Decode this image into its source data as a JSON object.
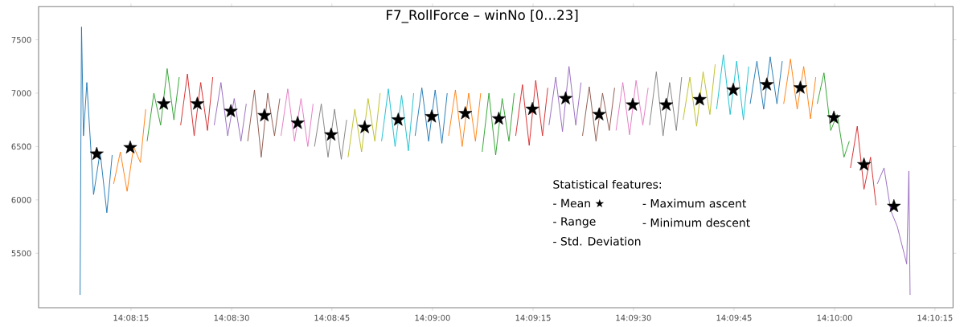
{
  "chart_data": {
    "type": "line",
    "title": "F7_RollForce – winNo [0...23]",
    "annotations": [
      "Statistical features:",
      "- Mean ★",
      "- Maximum ascent",
      "- Range",
      "- Minimum descent",
      "- Std. Deviation"
    ],
    "xlim": [
      14.13367,
      14.17158
    ],
    "ylim": [
      4990,
      7810
    ],
    "xticks": [
      {
        "value": 14.1375,
        "label": "14:08:15"
      },
      {
        "value": 14.14167,
        "label": "14:08:30"
      },
      {
        "value": 14.14583,
        "label": "14:08:45"
      },
      {
        "value": 14.15,
        "label": "14:09:00"
      },
      {
        "value": 14.15417,
        "label": "14:09:15"
      },
      {
        "value": 14.15833,
        "label": "14:09:30"
      },
      {
        "value": 14.1625,
        "label": "14:09:45"
      },
      {
        "value": 14.16667,
        "label": "14:10:00"
      },
      {
        "value": 14.17083,
        "label": "14:10:15"
      }
    ],
    "yticks": [
      5500,
      6000,
      6500,
      7000,
      7500
    ],
    "series": [
      {
        "color": "#1f77b4",
        "x": [
          14.13539,
          14.13545,
          14.13553,
          14.13567,
          14.13595,
          14.13622,
          14.1365,
          14.13672
        ],
        "values": [
          5110,
          7620,
          6600,
          7100,
          6050,
          6450,
          5880,
          6420
        ]
      },
      {
        "color": "#ff7f0e",
        "x": [
          14.13678,
          14.13706,
          14.13734,
          14.13761,
          14.13789,
          14.13811
        ],
        "values": [
          6150,
          6450,
          6080,
          6500,
          6350,
          6850
        ]
      },
      {
        "color": "#2ca02c",
        "x": [
          14.13817,
          14.13845,
          14.13873,
          14.139,
          14.13928,
          14.1395
        ],
        "values": [
          6550,
          7000,
          6700,
          7230,
          6750,
          7150
        ]
      },
      {
        "color": "#d62728",
        "x": [
          14.13956,
          14.13984,
          14.14012,
          14.14039,
          14.14067,
          14.14089
        ],
        "values": [
          6700,
          7180,
          6600,
          7100,
          6650,
          7150
        ]
      },
      {
        "color": "#9467bd",
        "x": [
          14.14095,
          14.14123,
          14.14151,
          14.14178,
          14.14206,
          14.14228
        ],
        "values": [
          6700,
          7100,
          6600,
          6950,
          6550,
          6900
        ]
      },
      {
        "color": "#8c564b",
        "x": [
          14.14234,
          14.14262,
          14.1429,
          14.14317,
          14.14345,
          14.14367
        ],
        "values": [
          6550,
          7030,
          6400,
          7000,
          6600,
          6950
        ]
      },
      {
        "color": "#e377c2",
        "x": [
          14.14372,
          14.144,
          14.14428,
          14.14455,
          14.14483,
          14.14505
        ],
        "values": [
          6600,
          7040,
          6550,
          6950,
          6500,
          6900
        ]
      },
      {
        "color": "#7f7f7f",
        "x": [
          14.14511,
          14.14539,
          14.14567,
          14.14594,
          14.14622,
          14.14644
        ],
        "values": [
          6500,
          6900,
          6400,
          6850,
          6380,
          6750
        ]
      },
      {
        "color": "#bcbd22",
        "x": [
          14.1465,
          14.14678,
          14.14706,
          14.14733,
          14.14761,
          14.14783
        ],
        "values": [
          6400,
          6850,
          6450,
          6950,
          6550,
          7000
        ]
      },
      {
        "color": "#17becf",
        "x": [
          14.14789,
          14.14817,
          14.14845,
          14.14872,
          14.149,
          14.14922
        ],
        "values": [
          6550,
          7040,
          6500,
          6980,
          6460,
          7000
        ]
      },
      {
        "color": "#1f77b4",
        "x": [
          14.14928,
          14.14956,
          14.14984,
          14.15011,
          14.15039,
          14.15061
        ],
        "values": [
          6600,
          7050,
          6550,
          7030,
          6530,
          7000
        ]
      },
      {
        "color": "#ff7f0e",
        "x": [
          14.15067,
          14.15095,
          14.15123,
          14.1515,
          14.15178,
          14.152
        ],
        "values": [
          6600,
          7030,
          6500,
          7000,
          6550,
          7000
        ]
      },
      {
        "color": "#2ca02c",
        "x": [
          14.15206,
          14.15234,
          14.15262,
          14.15289,
          14.15317,
          14.15339
        ],
        "values": [
          6450,
          7000,
          6420,
          6950,
          6550,
          7000
        ]
      },
      {
        "color": "#d62728",
        "x": [
          14.15345,
          14.15373,
          14.15401,
          14.15428,
          14.15456,
          14.15478
        ],
        "values": [
          6600,
          7080,
          6510,
          7120,
          6600,
          7050
        ]
      },
      {
        "color": "#9467bd",
        "x": [
          14.15483,
          14.15511,
          14.15539,
          14.15566,
          14.15594,
          14.15616
        ],
        "values": [
          6700,
          7150,
          6640,
          7250,
          6700,
          7100
        ]
      },
      {
        "color": "#8c564b",
        "x": [
          14.15622,
          14.1565,
          14.15678,
          14.15705,
          14.15733,
          14.15755
        ],
        "values": [
          6600,
          7060,
          6550,
          7000,
          6650,
          7050
        ]
      },
      {
        "color": "#e377c2",
        "x": [
          14.15761,
          14.15789,
          14.15817,
          14.15844,
          14.15872,
          14.15894
        ],
        "values": [
          6650,
          7100,
          6610,
          7120,
          6700,
          7050
        ]
      },
      {
        "color": "#7f7f7f",
        "x": [
          14.159,
          14.15928,
          14.15956,
          14.15983,
          14.16011,
          14.16033
        ],
        "values": [
          6700,
          7200,
          6600,
          7100,
          6650,
          7150
        ]
      },
      {
        "color": "#bcbd22",
        "x": [
          14.16039,
          14.16067,
          14.16095,
          14.16122,
          14.1615,
          14.16172
        ],
        "values": [
          6750,
          7150,
          6690,
          7200,
          6800,
          7270
        ]
      },
      {
        "color": "#17becf",
        "x": [
          14.16178,
          14.16206,
          14.16234,
          14.16261,
          14.16289,
          14.16311
        ],
        "values": [
          6850,
          7360,
          6800,
          7300,
          6750,
          7250
        ]
      },
      {
        "color": "#1f77b4",
        "x": [
          14.16317,
          14.16345,
          14.16373,
          14.164,
          14.16428,
          14.1645
        ],
        "values": [
          6900,
          7300,
          6850,
          7340,
          6900,
          7300
        ]
      },
      {
        "color": "#ff7f0e",
        "x": [
          14.16456,
          14.16484,
          14.16512,
          14.16539,
          14.16567,
          14.16589
        ],
        "values": [
          6900,
          7320,
          6850,
          7250,
          6760,
          7150
        ]
      },
      {
        "color": "#2ca02c",
        "x": [
          14.16595,
          14.16623,
          14.16651,
          14.16678,
          14.16706,
          14.16728
        ],
        "values": [
          6900,
          7190,
          6650,
          6800,
          6400,
          6550
        ]
      },
      {
        "color": "#d62728",
        "x": [
          14.16733,
          14.16761,
          14.16789,
          14.16816,
          14.16839
        ],
        "values": [
          6300,
          6690,
          6100,
          6400,
          5950
        ]
      },
      {
        "color": "#9467bd",
        "x": [
          14.16844,
          14.16872,
          14.169,
          14.16927,
          14.16955,
          14.16966,
          14.16975,
          14.1698
        ],
        "values": [
          6150,
          6300,
          5900,
          5750,
          5500,
          5400,
          6270,
          5110
        ]
      },
      {
        "type": "scatter",
        "marker": "star",
        "color": "#000000",
        "x": [
          14.13608,
          14.13747,
          14.13886,
          14.14025,
          14.14164,
          14.14303,
          14.14441,
          14.1458,
          14.14719,
          14.14858,
          14.14997,
          14.15136,
          14.15275,
          14.15414,
          14.15552,
          14.15691,
          14.1583,
          14.15969,
          14.16108,
          14.16247,
          14.16386,
          14.16525,
          14.16664,
          14.16789,
          14.16913
        ],
        "values": [
          6430,
          6490,
          6900,
          6900,
          6830,
          6790,
          6720,
          6610,
          6680,
          6750,
          6780,
          6810,
          6760,
          6850,
          6950,
          6800,
          6890,
          6890,
          6940,
          7030,
          7080,
          7050,
          6770,
          6330,
          5940
        ]
      }
    ]
  }
}
